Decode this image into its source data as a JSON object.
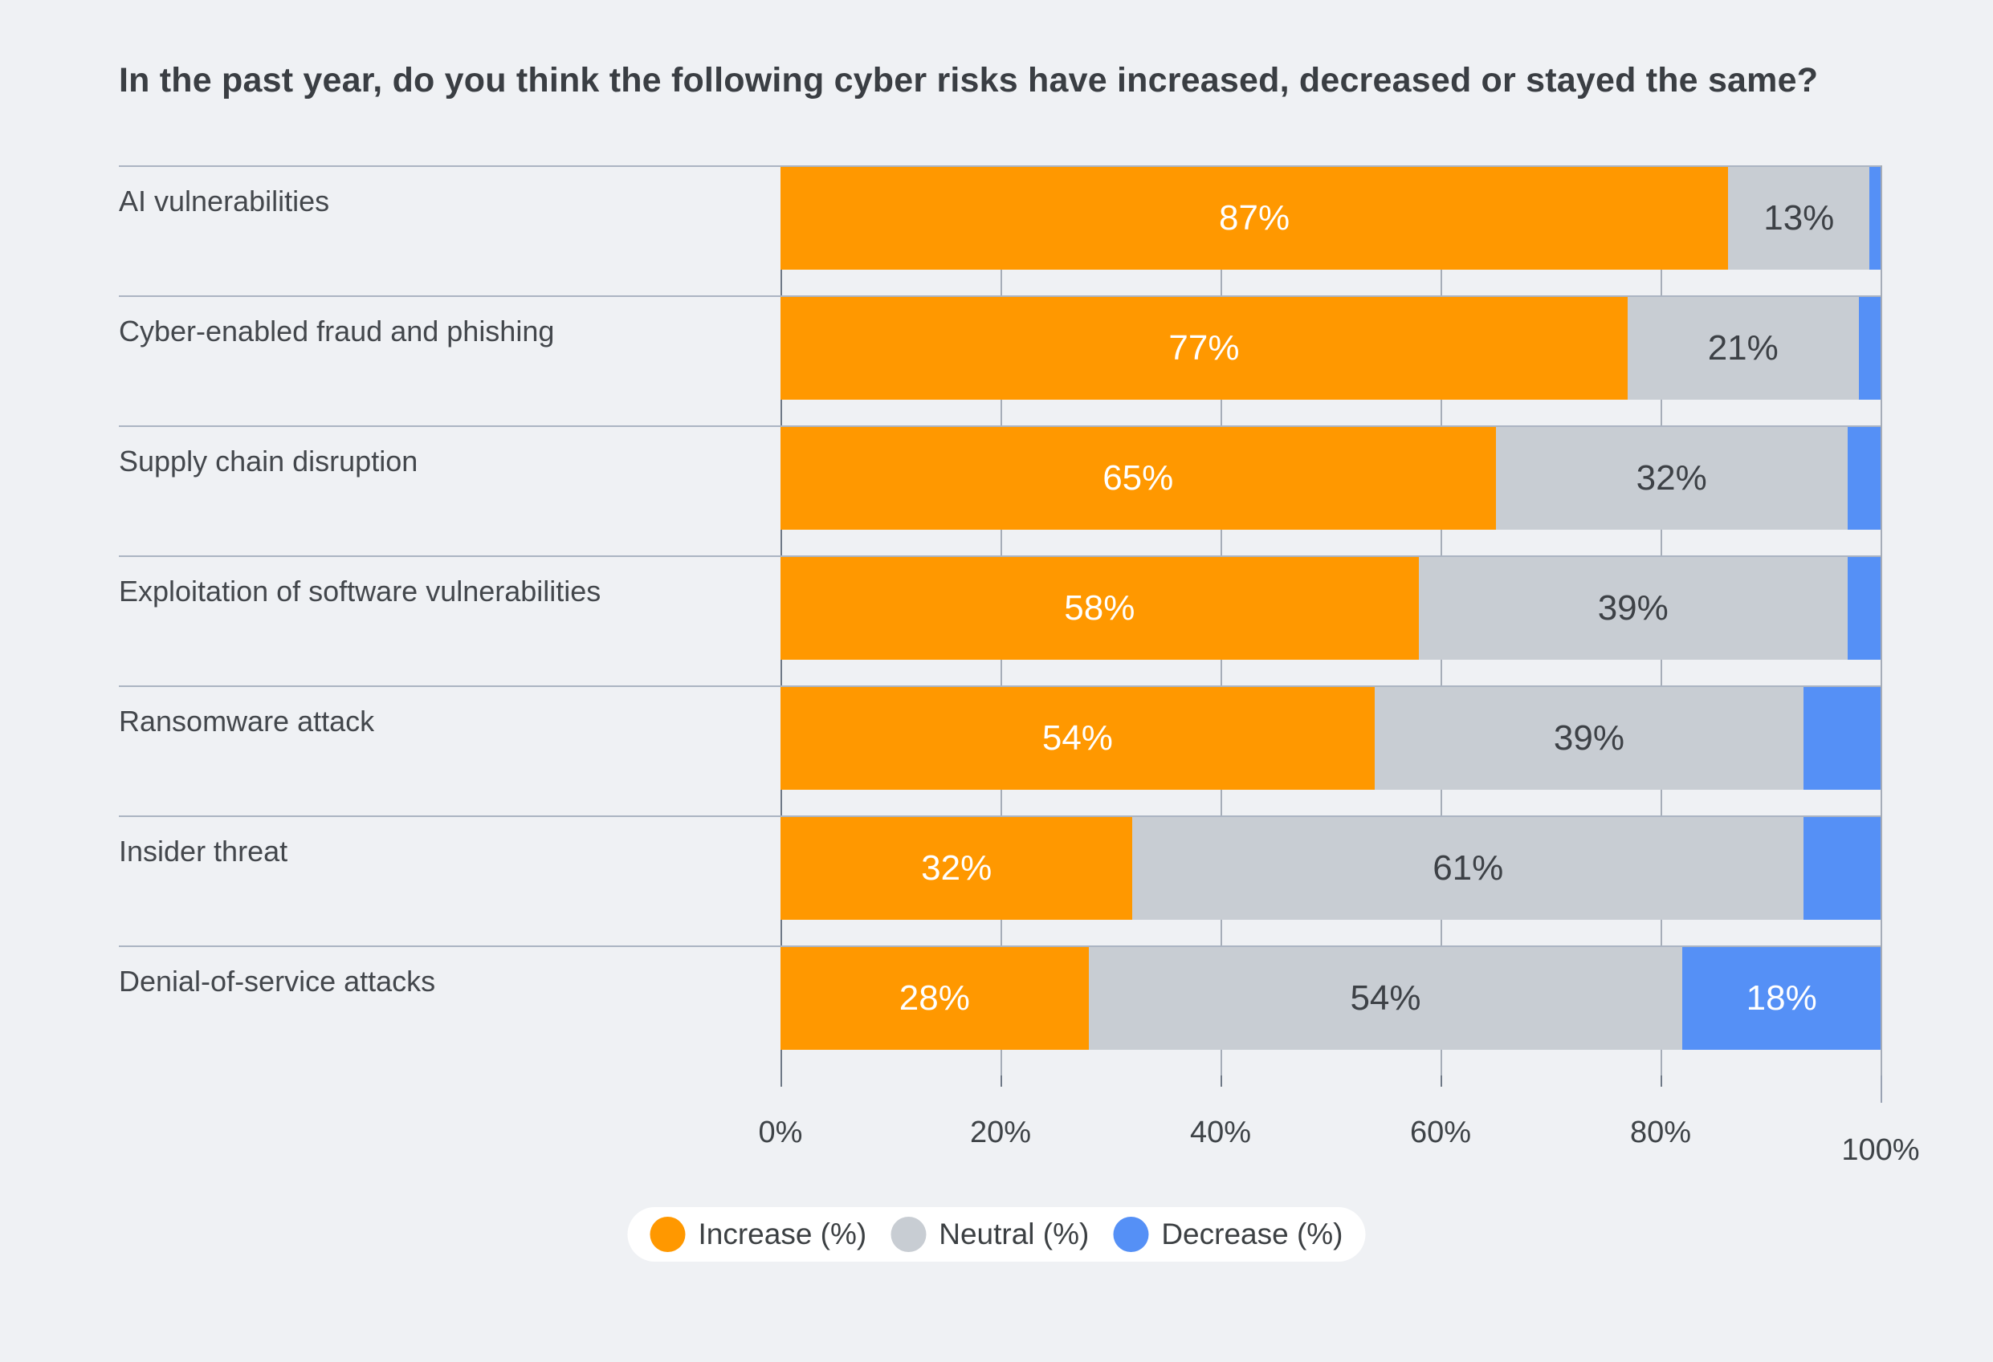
{
  "title": "In the past year, do you think the following cyber risks have increased, decreased or stayed the same?",
  "theme": {
    "background": "#EFF1F4",
    "increase_color": "#FF9800",
    "neutral_color": "#C8CDD3",
    "decrease_color": "#5590F6",
    "grid_color": "#A6ADB8",
    "axis_color": "#6F7987",
    "separator_color": "#ABB4C2",
    "text_dark": "#3A3E43",
    "legend_background": "#FFFFFF"
  },
  "chart_data": {
    "type": "bar",
    "orientation": "horizontal-stacked",
    "title": "In the past year, do you think the following cyber risks have increased, decreased or stayed the same?",
    "categories": [
      "AI vulnerabilities",
      "Cyber-enabled fraud and phishing",
      "Supply chain disruption",
      "Exploitation of software vulnerabilities",
      "Ransomware attack",
      "Insider threat",
      "Denial-of-service attacks"
    ],
    "series": [
      {
        "name": "Increase (%)",
        "color": "#FF9800",
        "values": [
          87,
          77,
          65,
          58,
          54,
          32,
          28
        ]
      },
      {
        "name": "Neutral (%)",
        "color": "#C8CDD3",
        "values": [
          13,
          21,
          32,
          39,
          39,
          61,
          54
        ]
      },
      {
        "name": "Decrease (%)",
        "color": "#5590F6",
        "values": [
          1,
          2,
          3,
          3,
          7,
          7,
          18
        ]
      }
    ],
    "bar_labels": {
      "increase": [
        "87%",
        "77%",
        "65%",
        "58%",
        "54%",
        "32%",
        "28%"
      ],
      "neutral": [
        "13%",
        "21%",
        "32%",
        "39%",
        "39%",
        "61%",
        "54%"
      ],
      "decrease": [
        "",
        "",
        "",
        "",
        "",
        "",
        "18%"
      ]
    },
    "x_ticks": [
      {
        "label": "0%",
        "value": 0
      },
      {
        "label": "20%",
        "value": 20
      },
      {
        "label": "40%",
        "value": 40
      },
      {
        "label": "60%",
        "value": 60
      },
      {
        "label": "80%",
        "value": 80
      },
      {
        "label": "100%",
        "value": 100
      }
    ],
    "xlim": [
      0,
      100
    ],
    "grid": true,
    "legend": [
      "Increase (%)",
      "Neutral (%)",
      "Decrease (%)"
    ],
    "legend_position": "bottom-center"
  }
}
